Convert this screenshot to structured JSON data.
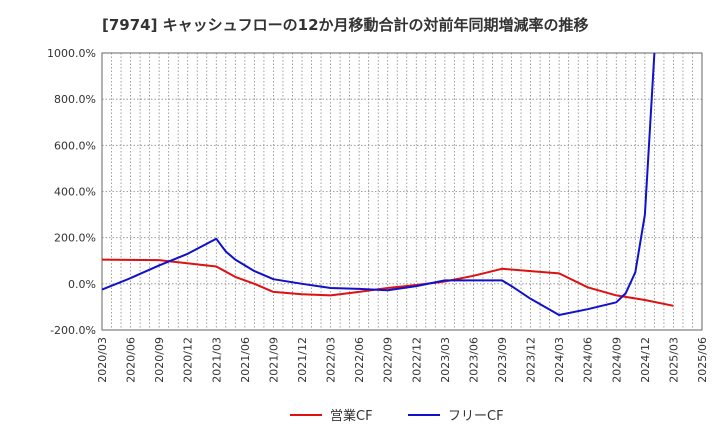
{
  "chart_data": {
    "type": "line",
    "title": "[7974]  キャッシュフローの12か月移動合計の対前年同期増減率の推移",
    "xlabel": "",
    "ylabel": "",
    "ylim": [
      -200,
      1000
    ],
    "y_ticks": [
      "1000.0%",
      "800.0%",
      "600.0%",
      "400.0%",
      "200.0%",
      "0.0%",
      "-200.0%"
    ],
    "y_tick_values": [
      1000,
      800,
      600,
      400,
      200,
      0,
      -200
    ],
    "x_ticks": [
      "2020/03",
      "2020/06",
      "2020/09",
      "2020/12",
      "2021/03",
      "2021/06",
      "2021/09",
      "2021/12",
      "2022/03",
      "2022/06",
      "2022/09",
      "2022/12",
      "2023/03",
      "2023/06",
      "2023/09",
      "2023/12",
      "2024/03",
      "2024/06",
      "2024/09",
      "2024/12",
      "2025/03",
      "2025/06"
    ],
    "grid": true,
    "legend_position": "bottom",
    "series": [
      {
        "name": "営業CF",
        "color": "#dd1111",
        "x": [
          "2020/03",
          "2020/09",
          "2021/03",
          "2021/05",
          "2021/07",
          "2021/09",
          "2021/12",
          "2022/03",
          "2022/06",
          "2022/09",
          "2022/12",
          "2023/03",
          "2023/06",
          "2023/09",
          "2023/12",
          "2024/03",
          "2024/06",
          "2024/09",
          "2024/12",
          "2025/03"
        ],
        "values": [
          105,
          103,
          75,
          30,
          0,
          -35,
          -45,
          -50,
          -35,
          -18,
          -5,
          10,
          35,
          65,
          55,
          45,
          -15,
          -50,
          -70,
          -95
        ]
      },
      {
        "name": "フリーCF",
        "color": "#1111cc",
        "x": [
          "2020/03",
          "2020/06",
          "2020/09",
          "2020/12",
          "2021/03",
          "2021/04",
          "2021/05",
          "2021/06",
          "2021/07",
          "2021/09",
          "2021/12",
          "2022/03",
          "2022/06",
          "2022/09",
          "2022/12",
          "2023/03",
          "2023/06",
          "2023/09",
          "2023/10",
          "2023/12",
          "2024/03",
          "2024/06",
          "2024/09",
          "2024/10",
          "2024/11",
          "2024/12",
          "2025/01"
        ],
        "values": [
          -25,
          25,
          80,
          130,
          195,
          140,
          105,
          80,
          55,
          20,
          0,
          -18,
          -22,
          -28,
          -10,
          15,
          15,
          15,
          -10,
          -65,
          -135,
          -110,
          -80,
          -40,
          50,
          300,
          1000
        ]
      }
    ]
  }
}
